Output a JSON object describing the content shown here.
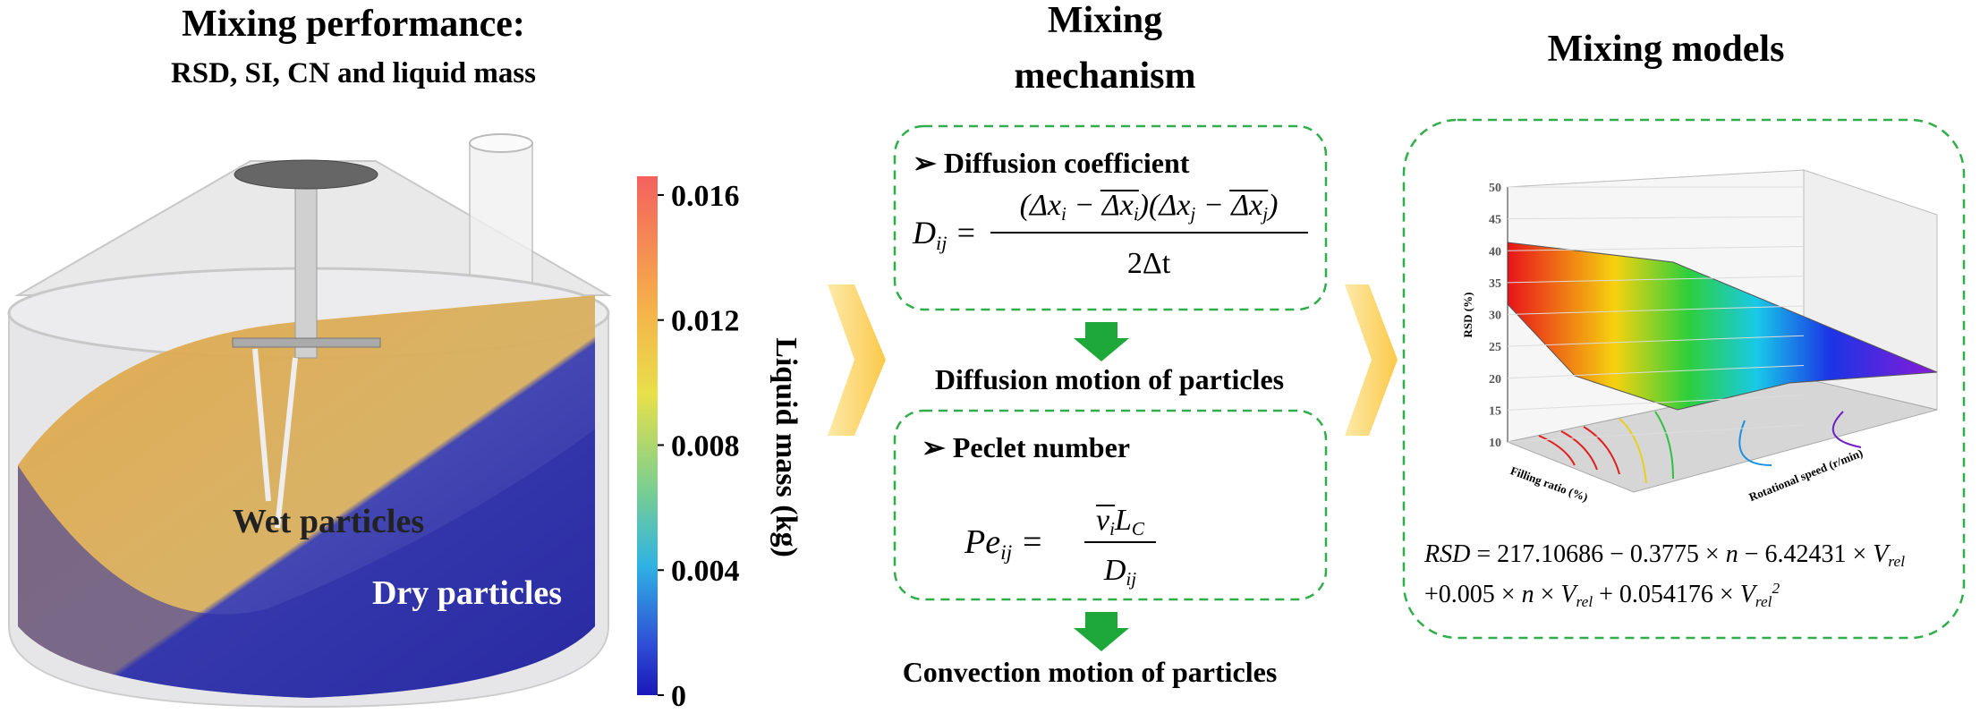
{
  "performance": {
    "title": "Mixing performance:",
    "subtitle": "RSD, SI, CN and liquid mass",
    "wet_label": "Wet particles",
    "dry_label": "Dry particles",
    "colorbar": {
      "label": "Liquid mass (kg)",
      "range": [
        0,
        0.0166
      ],
      "ticks": [
        0.016,
        0.012,
        0.008,
        0.004,
        0
      ]
    }
  },
  "mechanism": {
    "title": [
      "Mixing",
      "mechanism"
    ],
    "diffusion_box": {
      "heading": "Diffusion coefficient",
      "lhs": [
        {
          "t": "D",
          "k": "n"
        },
        {
          "t": "ij",
          "k": "sub"
        },
        {
          "t": " =",
          "k": "n"
        }
      ],
      "numerator": [
        {
          "t": "(Δx",
          "k": "n"
        },
        {
          "t": "i",
          "k": "sub"
        },
        {
          "t": " − ",
          "k": "n"
        },
        {
          "t": "Δx",
          "k": "over"
        },
        {
          "t": "i",
          "k": "oversub"
        },
        {
          "t": ")(Δx",
          "k": "n"
        },
        {
          "t": "j",
          "k": "sub"
        },
        {
          "t": " − ",
          "k": "n"
        },
        {
          "t": "Δx",
          "k": "over"
        },
        {
          "t": "j",
          "k": "oversub"
        },
        {
          "t": ")",
          "k": "n"
        }
      ],
      "denominator": [
        {
          "t": "2Δt",
          "k": "n"
        }
      ]
    },
    "diffusion_result": "Diffusion motion of particles",
    "peclet_box": {
      "heading": "Peclet number",
      "lhs": [
        {
          "t": "Pe",
          "k": "n"
        },
        {
          "t": "ij",
          "k": "sub"
        },
        {
          "t": " =",
          "k": "n"
        }
      ],
      "numerator": [
        {
          "t": "v",
          "k": "over"
        },
        {
          "t": "i",
          "k": "oversub"
        },
        {
          "t": "L",
          "k": "n"
        },
        {
          "t": "C",
          "k": "sub"
        }
      ],
      "denominator": [
        {
          "t": "D",
          "k": "n"
        },
        {
          "t": "ij",
          "k": "sub"
        }
      ]
    },
    "convection_result": "Convection motion of particles"
  },
  "models": {
    "title": "Mixing models",
    "plot": {
      "z_label": "RSD (%)",
      "x_label": "Filling ratio (%)",
      "y_label": "Rotational speed (r/min)",
      "zlim": [
        10,
        50
      ],
      "zticks": [
        10,
        15,
        20,
        25,
        30,
        35,
        40,
        45,
        50
      ]
    },
    "equation": [
      [
        {
          "t": "RSD",
          "k": "n"
        },
        {
          "t": " = 217.10686 − 0.3775 × ",
          "k": "r"
        },
        {
          "t": "n",
          "k": "n"
        },
        {
          "t": " − 6.42431 × ",
          "k": "r"
        },
        {
          "t": "V",
          "k": "n"
        },
        {
          "t": "rel",
          "k": "sub"
        }
      ],
      [
        {
          "t": "+0.005 × ",
          "k": "r"
        },
        {
          "t": "n",
          "k": "n"
        },
        {
          "t": " × ",
          "k": "r"
        },
        {
          "t": "V",
          "k": "n"
        },
        {
          "t": "rel",
          "k": "sub"
        },
        {
          "t": " + 0.054176 × ",
          "k": "r"
        },
        {
          "t": "V",
          "k": "n"
        },
        {
          "t": "rel",
          "k": "sub"
        },
        {
          "t": "2",
          "k": "sup"
        }
      ]
    ]
  }
}
